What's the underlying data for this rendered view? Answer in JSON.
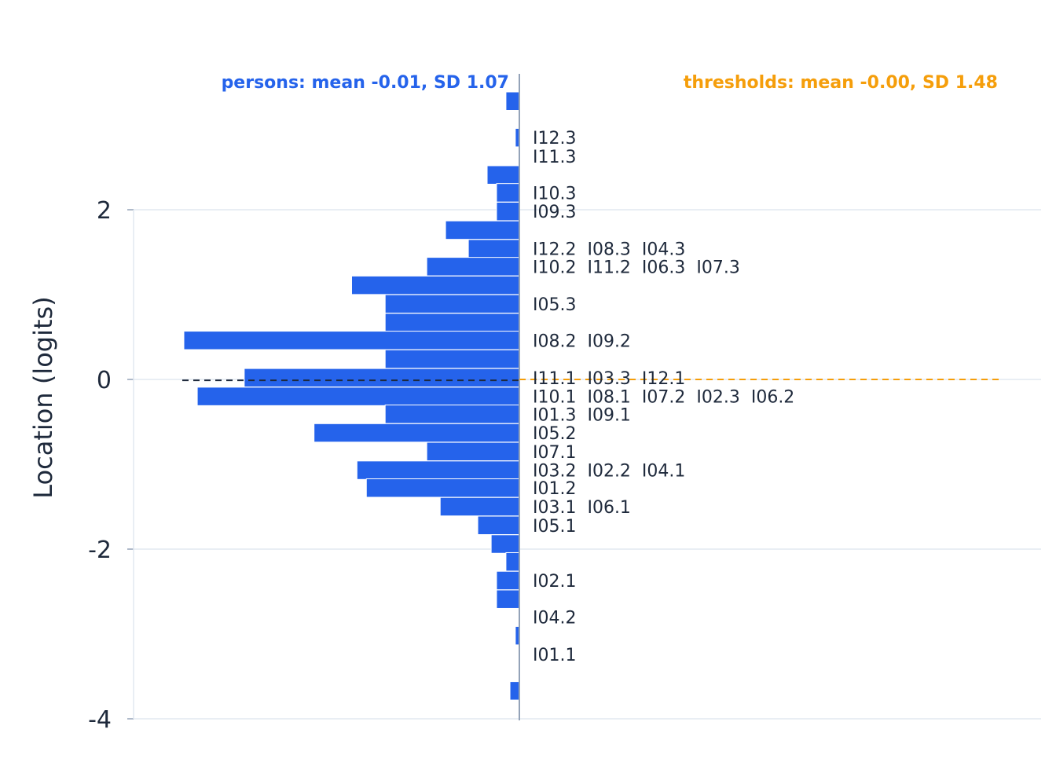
{
  "chart_data": {
    "type": "bar",
    "ylabel": "Location (logits)",
    "ylim": [
      -4,
      2
    ],
    "yticks": [
      2,
      0,
      -2,
      -4
    ],
    "ytick_labels": [
      "2",
      "0",
      "-2",
      "-4"
    ],
    "grid": true,
    "colors": {
      "persons": "#2563eb",
      "thresholds": "#f59e0b",
      "text": "#1e293b",
      "grid": "#e2e8f0",
      "axis": "#94a3b8"
    },
    "persons_legend": "persons: mean -0.01, SD 1.07",
    "thresholds_legend": "thresholds: mean -0.00, SD 1.48",
    "persons_mean": -0.01,
    "thresholds_mean": -0.0,
    "bin_width": 0.2174,
    "person_bins": [
      {
        "center": 3.28,
        "count": 1
      },
      {
        "center": 2.85,
        "count": 0.3
      },
      {
        "center": 2.41,
        "count": 2.4
      },
      {
        "center": 2.2,
        "count": 1.7
      },
      {
        "center": 1.98,
        "count": 1.7
      },
      {
        "center": 1.76,
        "count": 5.5
      },
      {
        "center": 1.54,
        "count": 3.8
      },
      {
        "center": 1.33,
        "count": 6.9
      },
      {
        "center": 1.11,
        "count": 12.5
      },
      {
        "center": 0.89,
        "count": 10
      },
      {
        "center": 0.67,
        "count": 10
      },
      {
        "center": 0.46,
        "count": 25
      },
      {
        "center": 0.24,
        "count": 10
      },
      {
        "center": 0.02,
        "count": 20.5
      },
      {
        "center": -0.2,
        "count": 24
      },
      {
        "center": -0.41,
        "count": 10
      },
      {
        "center": -0.63,
        "count": 15.3
      },
      {
        "center": -0.85,
        "count": 6.9
      },
      {
        "center": -1.07,
        "count": 12.1
      },
      {
        "center": -1.28,
        "count": 11.4
      },
      {
        "center": -1.5,
        "count": 5.9
      },
      {
        "center": -1.72,
        "count": 3.1
      },
      {
        "center": -1.94,
        "count": 2.1
      },
      {
        "center": -2.15,
        "count": 1
      },
      {
        "center": -2.37,
        "count": 1.7
      },
      {
        "center": -2.59,
        "count": 1.7
      },
      {
        "center": -3.02,
        "count": 0.3
      },
      {
        "center": -3.67,
        "count": 0.7
      }
    ],
    "threshold_rows": [
      {
        "y": 2.85,
        "label": "I12.3"
      },
      {
        "y": 2.63,
        "label": "I11.3"
      },
      {
        "y": 2.2,
        "label": "I10.3"
      },
      {
        "y": 1.98,
        "label": "I09.3"
      },
      {
        "y": 1.54,
        "label": "I12.2  I08.3  I04.3"
      },
      {
        "y": 1.33,
        "label": "I10.2  I11.2  I06.3  I07.3"
      },
      {
        "y": 0.89,
        "label": "I05.3"
      },
      {
        "y": 0.46,
        "label": "I08.2  I09.2"
      },
      {
        "y": 0.02,
        "label": "I11.1  I03.3  I12.1"
      },
      {
        "y": -0.2,
        "label": "I10.1  I08.1  I07.2  I02.3  I06.2"
      },
      {
        "y": -0.41,
        "label": "I01.3  I09.1"
      },
      {
        "y": -0.63,
        "label": "I05.2"
      },
      {
        "y": -0.85,
        "label": "I07.1"
      },
      {
        "y": -1.07,
        "label": "I03.2  I02.2  I04.1"
      },
      {
        "y": -1.28,
        "label": "I01.2"
      },
      {
        "y": -1.5,
        "label": "I03.1  I06.1"
      },
      {
        "y": -1.72,
        "label": "I05.1"
      },
      {
        "y": -2.37,
        "label": "I02.1"
      },
      {
        "y": -2.8,
        "label": "I04.2"
      },
      {
        "y": -3.24,
        "label": "I01.1"
      }
    ]
  }
}
